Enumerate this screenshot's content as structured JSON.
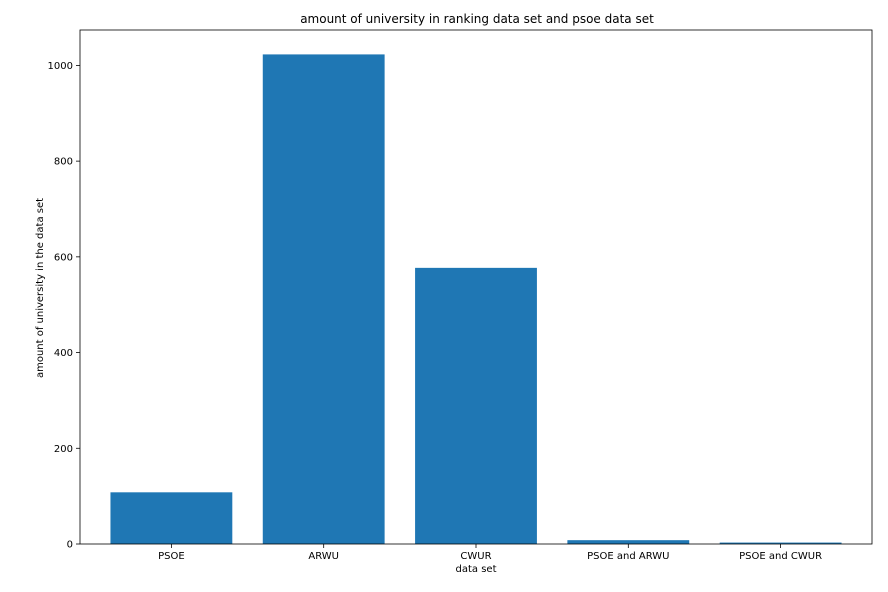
{
  "colors": {
    "bar": "#1f77b4",
    "axis": "#000000",
    "background": "#ffffff"
  },
  "chart_data": {
    "type": "bar",
    "title": "amount of university in ranking data set and psoe data set",
    "xlabel": "data set",
    "ylabel": "amount of university in the data set",
    "categories": [
      "PSOE",
      "ARWU",
      "CWUR",
      "PSOE and ARWU",
      "PSOE and CWUR"
    ],
    "values": [
      108,
      1023,
      577,
      8,
      3
    ],
    "ylim": [
      0,
      1074
    ],
    "yticks": [
      0,
      200,
      400,
      600,
      800,
      1000
    ],
    "ytick_labels": [
      "0",
      "200",
      "400",
      "600",
      "800",
      "1000"
    ],
    "grid": false,
    "legend": "none"
  }
}
